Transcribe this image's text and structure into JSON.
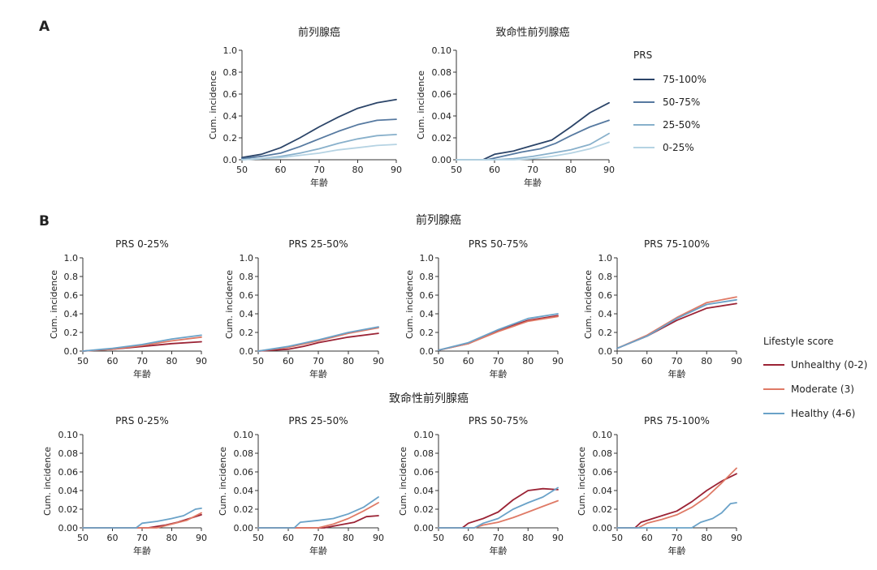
{
  "panel_a": {
    "letter": "A"
  },
  "panel_b": {
    "letter": "B",
    "row_titles": [
      "前列腺癌",
      "致命性前列腺癌"
    ]
  },
  "legend_prs": {
    "title": "PRS",
    "entries": [
      {
        "label": "75-100%",
        "color": "#2b4468"
      },
      {
        "label": "50-75%",
        "color": "#5679a0"
      },
      {
        "label": "25-50%",
        "color": "#88b0cb"
      },
      {
        "label": "0-25%",
        "color": "#b5d3e3"
      }
    ]
  },
  "legend_lifestyle": {
    "title": "Lifestyle score",
    "entries": [
      {
        "label": "Unhealthy (0-2)",
        "color": "#9b2335"
      },
      {
        "label": "Moderate (3)",
        "color": "#df7a66"
      },
      {
        "label": "Healthy (4-6)",
        "color": "#6aa2c8"
      }
    ]
  },
  "chart_data": [
    {
      "id": "a1",
      "type": "line",
      "title": "前列腺癌",
      "xlabel": "年齢",
      "ylabel": "Cum. incidence",
      "xlim": [
        50,
        90
      ],
      "ylim": [
        0,
        1.0
      ],
      "xticks": [
        50,
        60,
        70,
        80,
        90
      ],
      "yticks": [
        "0.0",
        "0.2",
        "0.4",
        "0.6",
        "0.8",
        "1.0"
      ],
      "series": [
        {
          "name": "75-100%",
          "color": "#2b4468",
          "x": [
            50,
            55,
            60,
            65,
            70,
            75,
            80,
            85,
            90
          ],
          "y": [
            0.02,
            0.05,
            0.11,
            0.2,
            0.3,
            0.39,
            0.47,
            0.52,
            0.55
          ]
        },
        {
          "name": "50-75%",
          "color": "#5679a0",
          "x": [
            50,
            55,
            60,
            65,
            70,
            75,
            80,
            85,
            90
          ],
          "y": [
            0.01,
            0.03,
            0.06,
            0.12,
            0.19,
            0.26,
            0.32,
            0.36,
            0.37
          ]
        },
        {
          "name": "25-50%",
          "color": "#88b0cb",
          "x": [
            50,
            55,
            60,
            65,
            70,
            75,
            80,
            85,
            90
          ],
          "y": [
            0.0,
            0.01,
            0.03,
            0.06,
            0.1,
            0.15,
            0.19,
            0.22,
            0.23
          ]
        },
        {
          "name": "0-25%",
          "color": "#b5d3e3",
          "x": [
            50,
            55,
            60,
            65,
            70,
            75,
            80,
            85,
            90
          ],
          "y": [
            0.0,
            0.01,
            0.02,
            0.04,
            0.06,
            0.09,
            0.11,
            0.13,
            0.14
          ]
        }
      ]
    },
    {
      "id": "a2",
      "type": "line",
      "title": "致命性前列腺癌",
      "xlabel": "年齢",
      "ylabel": "Cum. incidence",
      "xlim": [
        50,
        90
      ],
      "ylim": [
        0,
        0.1
      ],
      "xticks": [
        50,
        60,
        70,
        80,
        90
      ],
      "yticks": [
        "0.00",
        "0.02",
        "0.04",
        "0.06",
        "0.08",
        "0.10"
      ],
      "series": [
        {
          "name": "75-100%",
          "color": "#2b4468",
          "x": [
            50,
            57,
            60,
            65,
            70,
            75,
            80,
            85,
            90
          ],
          "y": [
            0.0,
            0.0,
            0.005,
            0.008,
            0.013,
            0.018,
            0.03,
            0.043,
            0.052
          ]
        },
        {
          "name": "50-75%",
          "color": "#5679a0",
          "x": [
            50,
            58,
            62,
            67,
            72,
            76,
            80,
            85,
            90
          ],
          "y": [
            0.0,
            0.0,
            0.003,
            0.007,
            0.01,
            0.015,
            0.022,
            0.03,
            0.036
          ]
        },
        {
          "name": "25-50%",
          "color": "#88b0cb",
          "x": [
            50,
            60,
            65,
            70,
            75,
            80,
            85,
            90
          ],
          "y": [
            0.0,
            0.0,
            0.001,
            0.003,
            0.006,
            0.009,
            0.014,
            0.024
          ]
        },
        {
          "name": "0-25%",
          "color": "#b5d3e3",
          "x": [
            50,
            65,
            70,
            75,
            80,
            85,
            90
          ],
          "y": [
            0.0,
            0.0,
            0.001,
            0.003,
            0.006,
            0.01,
            0.016
          ]
        }
      ]
    },
    {
      "id": "b1",
      "type": "line",
      "title": "PRS 0-25%",
      "xlabel": "年齢",
      "ylabel": "Cum. incidence",
      "xlim": [
        50,
        90
      ],
      "ylim": [
        0,
        1.0
      ],
      "xticks": [
        50,
        60,
        70,
        80,
        90
      ],
      "yticks": [
        "0.0",
        "0.2",
        "0.4",
        "0.6",
        "0.8",
        "1.0"
      ],
      "series": [
        {
          "name": "Unhealthy (0-2)",
          "color": "#9b2335",
          "x": [
            50,
            60,
            70,
            80,
            90
          ],
          "y": [
            0.0,
            0.02,
            0.05,
            0.08,
            0.1
          ]
        },
        {
          "name": "Moderate (3)",
          "color": "#df7a66",
          "x": [
            50,
            60,
            70,
            80,
            90
          ],
          "y": [
            0.0,
            0.02,
            0.06,
            0.11,
            0.15
          ]
        },
        {
          "name": "Healthy (4-6)",
          "color": "#6aa2c8",
          "x": [
            50,
            60,
            70,
            80,
            90
          ],
          "y": [
            0.0,
            0.03,
            0.07,
            0.13,
            0.17
          ]
        }
      ]
    },
    {
      "id": "b2",
      "type": "line",
      "title": "PRS 25-50%",
      "xlabel": "年齢",
      "ylabel": "Cum. incidence",
      "xlim": [
        50,
        90
      ],
      "ylim": [
        0,
        1.0
      ],
      "xticks": [
        50,
        60,
        70,
        80,
        90
      ],
      "yticks": [
        "0.0",
        "0.2",
        "0.4",
        "0.6",
        "0.8",
        "1.0"
      ],
      "series": [
        {
          "name": "Unhealthy (0-2)",
          "color": "#9b2335",
          "x": [
            50,
            60,
            65,
            70,
            80,
            90
          ],
          "y": [
            0.0,
            0.02,
            0.05,
            0.09,
            0.15,
            0.19
          ]
        },
        {
          "name": "Moderate (3)",
          "color": "#df7a66",
          "x": [
            50,
            60,
            70,
            80,
            90
          ],
          "y": [
            0.0,
            0.04,
            0.11,
            0.19,
            0.25
          ]
        },
        {
          "name": "Healthy (4-6)",
          "color": "#6aa2c8",
          "x": [
            50,
            60,
            70,
            80,
            90
          ],
          "y": [
            0.0,
            0.05,
            0.12,
            0.2,
            0.26
          ]
        }
      ]
    },
    {
      "id": "b3",
      "type": "line",
      "title": "PRS 50-75%",
      "xlabel": "年齢",
      "ylabel": "Cum. incidence",
      "xlim": [
        50,
        90
      ],
      "ylim": [
        0,
        1.0
      ],
      "xticks": [
        50,
        60,
        70,
        80,
        90
      ],
      "yticks": [
        "0.0",
        "0.2",
        "0.4",
        "0.6",
        "0.8",
        "1.0"
      ],
      "series": [
        {
          "name": "Unhealthy (0-2)",
          "color": "#9b2335",
          "x": [
            50,
            60,
            70,
            80,
            90
          ],
          "y": [
            0.01,
            0.08,
            0.22,
            0.33,
            0.38
          ]
        },
        {
          "name": "Moderate (3)",
          "color": "#df7a66",
          "x": [
            50,
            60,
            70,
            80,
            90
          ],
          "y": [
            0.01,
            0.08,
            0.21,
            0.32,
            0.37
          ]
        },
        {
          "name": "Healthy (4-6)",
          "color": "#6aa2c8",
          "x": [
            50,
            60,
            70,
            80,
            90
          ],
          "y": [
            0.01,
            0.09,
            0.23,
            0.35,
            0.4
          ]
        }
      ]
    },
    {
      "id": "b4",
      "type": "line",
      "title": "PRS 75-100%",
      "xlabel": "年齢",
      "ylabel": "Cum. incidence",
      "xlim": [
        50,
        90
      ],
      "ylim": [
        0,
        1.0
      ],
      "xticks": [
        50,
        60,
        70,
        80,
        90
      ],
      "yticks": [
        "0.0",
        "0.2",
        "0.4",
        "0.6",
        "0.8",
        "1.0"
      ],
      "series": [
        {
          "name": "Unhealthy (0-2)",
          "color": "#9b2335",
          "x": [
            50,
            60,
            70,
            80,
            90
          ],
          "y": [
            0.03,
            0.16,
            0.33,
            0.46,
            0.51
          ]
        },
        {
          "name": "Moderate (3)",
          "color": "#df7a66",
          "x": [
            50,
            60,
            70,
            80,
            90
          ],
          "y": [
            0.03,
            0.17,
            0.36,
            0.52,
            0.58
          ]
        },
        {
          "name": "Healthy (4-6)",
          "color": "#6aa2c8",
          "x": [
            50,
            60,
            70,
            80,
            90
          ],
          "y": [
            0.03,
            0.16,
            0.35,
            0.5,
            0.55
          ]
        }
      ]
    },
    {
      "id": "b5",
      "type": "line",
      "title": "PRS 0-25%",
      "xlabel": "年齢",
      "ylabel": "Cum. incidence",
      "xlim": [
        50,
        90
      ],
      "ylim": [
        0,
        0.1
      ],
      "xticks": [
        50,
        60,
        70,
        80,
        90
      ],
      "yticks": [
        "0.00",
        "0.02",
        "0.04",
        "0.06",
        "0.08",
        "0.10"
      ],
      "series": [
        {
          "name": "Unhealthy (0-2)",
          "color": "#9b2335",
          "x": [
            50,
            72,
            78,
            82,
            86,
            90
          ],
          "y": [
            0.0,
            0.0,
            0.003,
            0.006,
            0.01,
            0.014
          ]
        },
        {
          "name": "Moderate (3)",
          "color": "#df7a66",
          "x": [
            50,
            75,
            80,
            85,
            90
          ],
          "y": [
            0.0,
            0.0,
            0.004,
            0.008,
            0.016
          ]
        },
        {
          "name": "Healthy (4-6)",
          "color": "#6aa2c8",
          "x": [
            50,
            68,
            70,
            75,
            80,
            84,
            88,
            90
          ],
          "y": [
            0.0,
            0.0,
            0.005,
            0.007,
            0.01,
            0.013,
            0.02,
            0.021
          ]
        }
      ]
    },
    {
      "id": "b6",
      "type": "line",
      "title": "PRS 25-50%",
      "xlabel": "年齢",
      "ylabel": "Cum. incidence",
      "xlim": [
        50,
        90
      ],
      "ylim": [
        0,
        0.1
      ],
      "xticks": [
        50,
        60,
        70,
        80,
        90
      ],
      "yticks": [
        "0.00",
        "0.02",
        "0.04",
        "0.06",
        "0.08",
        "0.10"
      ],
      "series": [
        {
          "name": "Unhealthy (0-2)",
          "color": "#9b2335",
          "x": [
            50,
            72,
            77,
            82,
            86,
            90
          ],
          "y": [
            0.0,
            0.0,
            0.003,
            0.006,
            0.012,
            0.013
          ]
        },
        {
          "name": "Moderate (3)",
          "color": "#df7a66",
          "x": [
            50,
            70,
            75,
            80,
            85,
            90
          ],
          "y": [
            0.0,
            0.0,
            0.004,
            0.01,
            0.018,
            0.027
          ]
        },
        {
          "name": "Healthy (4-6)",
          "color": "#6aa2c8",
          "x": [
            50,
            62,
            64,
            70,
            75,
            80,
            85,
            90
          ],
          "y": [
            0.0,
            0.0,
            0.006,
            0.008,
            0.01,
            0.015,
            0.022,
            0.033
          ]
        }
      ]
    },
    {
      "id": "b7",
      "type": "line",
      "title": "PRS 50-75%",
      "xlabel": "年齢",
      "ylabel": "Cum. incidence",
      "xlim": [
        50,
        90
      ],
      "ylim": [
        0,
        0.1
      ],
      "xticks": [
        50,
        60,
        70,
        80,
        90
      ],
      "yticks": [
        "0.00",
        "0.02",
        "0.04",
        "0.06",
        "0.08",
        "0.10"
      ],
      "series": [
        {
          "name": "Unhealthy (0-2)",
          "color": "#9b2335",
          "x": [
            50,
            58,
            60,
            65,
            70,
            75,
            80,
            85,
            90
          ],
          "y": [
            0.0,
            0.0,
            0.005,
            0.01,
            0.017,
            0.03,
            0.04,
            0.042,
            0.041
          ]
        },
        {
          "name": "Moderate (3)",
          "color": "#df7a66",
          "x": [
            50,
            62,
            65,
            70,
            75,
            80,
            85,
            90
          ],
          "y": [
            0.0,
            0.0,
            0.003,
            0.006,
            0.011,
            0.017,
            0.023,
            0.029
          ]
        },
        {
          "name": "Healthy (4-6)",
          "color": "#6aa2c8",
          "x": [
            50,
            62,
            65,
            70,
            75,
            80,
            85,
            90
          ],
          "y": [
            0.0,
            0.0,
            0.005,
            0.01,
            0.02,
            0.027,
            0.033,
            0.043
          ]
        }
      ]
    },
    {
      "id": "b8",
      "type": "line",
      "title": "PRS 75-100%",
      "xlabel": "年齢",
      "ylabel": "Cum. incidence",
      "xlim": [
        50,
        90
      ],
      "ylim": [
        0,
        0.1
      ],
      "xticks": [
        50,
        60,
        70,
        80,
        90
      ],
      "yticks": [
        "0.00",
        "0.02",
        "0.04",
        "0.06",
        "0.08",
        "0.10"
      ],
      "series": [
        {
          "name": "Unhealthy (0-2)",
          "color": "#9b2335",
          "x": [
            50,
            56,
            58,
            62,
            66,
            70,
            75,
            80,
            85,
            90
          ],
          "y": [
            0.0,
            0.0,
            0.006,
            0.01,
            0.014,
            0.018,
            0.028,
            0.04,
            0.05,
            0.058
          ]
        },
        {
          "name": "Moderate (3)",
          "color": "#df7a66",
          "x": [
            50,
            57,
            60,
            65,
            70,
            75,
            80,
            85,
            90
          ],
          "y": [
            0.0,
            0.0,
            0.005,
            0.009,
            0.014,
            0.022,
            0.033,
            0.048,
            0.064
          ]
        },
        {
          "name": "Healthy (4-6)",
          "color": "#6aa2c8",
          "x": [
            50,
            75,
            78,
            82,
            85,
            88,
            90
          ],
          "y": [
            0.0,
            0.0,
            0.006,
            0.01,
            0.016,
            0.026,
            0.027
          ]
        }
      ]
    }
  ]
}
